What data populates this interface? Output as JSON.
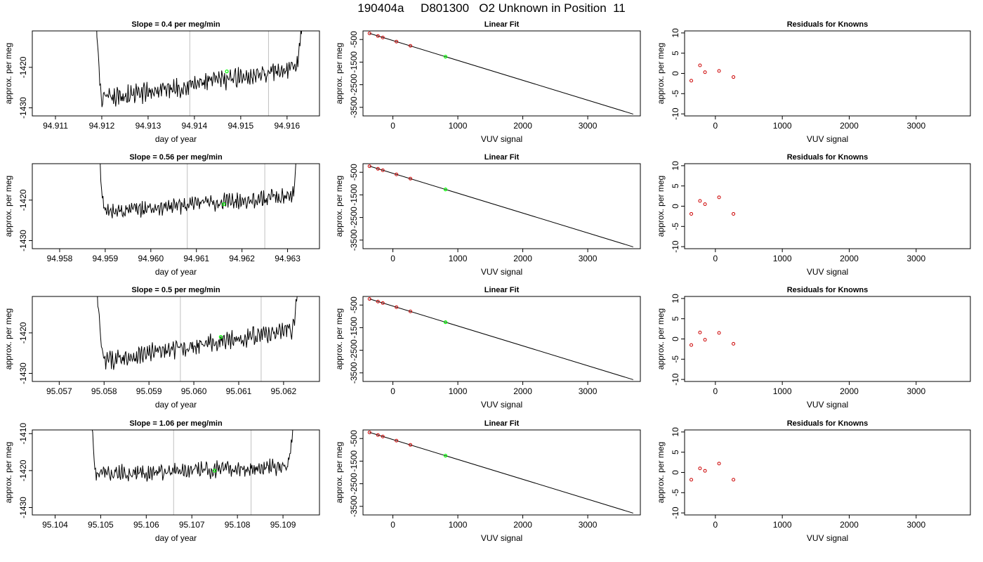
{
  "figure_title": "190404a     D801300   O2 Unknown in Position  11",
  "colors": {
    "trace": "#000000",
    "fit_line": "#000000",
    "cutoff_line": "#c0c0c0",
    "unknown_point": "#00ff00",
    "known_point": "#cc0000"
  },
  "chart_data": [
    {
      "type": "line",
      "panel": "trace",
      "row": 1,
      "title": "Slope =  0.4  per meg/min",
      "xlabel": "day of year",
      "ylabel": "approx. per meg",
      "xlim": [
        94.9105,
        94.9167
      ],
      "ylim": [
        -1432,
        -1411
      ],
      "xticks": [
        "94.911",
        "94.912",
        "94.913",
        "94.914",
        "94.915",
        "94.916"
      ],
      "yticks": [
        "-1430",
        "-1420"
      ],
      "trace_window": [
        94.9118,
        94.9165
      ],
      "plateau": {
        "x_start": 94.912,
        "x_end": 94.9162,
        "start": -1428,
        "end": -1420,
        "noise": 1.8
      },
      "vlines": [
        94.9139,
        94.9156
      ],
      "unknown": {
        "x": 94.9147,
        "y": -1421
      }
    },
    {
      "type": "scatter",
      "panel": "fit",
      "row": 1,
      "title": "Linear Fit",
      "xlabel": "VUV signal",
      "ylabel": "approx. per meg",
      "xlim": [
        -460,
        3810
      ],
      "ylim": [
        -3880,
        -120
      ],
      "xticks": [
        "0",
        "1000",
        "2000",
        "3000"
      ],
      "yticks": [
        "-500",
        "-1500",
        "-2500",
        "-3500"
      ],
      "line": [
        [
          -360,
          -230
        ],
        [
          3700,
          -3800
        ]
      ],
      "knowns": [
        [
          -360,
          -229
        ],
        [
          -230,
          -346
        ],
        [
          -155,
          -411
        ],
        [
          55,
          -595
        ],
        [
          270,
          -780
        ]
      ],
      "unknown": [
        810,
        -1259
      ]
    },
    {
      "type": "scatter",
      "panel": "residuals",
      "row": 1,
      "title": "Residuals for Knowns",
      "xlabel": "VUV signal",
      "ylabel": "approx. per meg",
      "xlim": [
        -460,
        3810
      ],
      "ylim": [
        -10.5,
        10.5
      ],
      "xticks": [
        "0",
        "1000",
        "2000",
        "3000"
      ],
      "yticks": [
        "-10",
        "-5",
        "0",
        "5",
        "10"
      ],
      "points": [
        [
          -360,
          -1.8
        ],
        [
          -230,
          2.0
        ],
        [
          -155,
          0.3
        ],
        [
          55,
          0.6
        ],
        [
          270,
          -0.9
        ]
      ]
    },
    {
      "type": "line",
      "panel": "trace",
      "row": 2,
      "title": "Slope =  0.56  per meg/min",
      "xlabel": "day of year",
      "ylabel": "approx. per meg",
      "xlim": [
        94.9574,
        94.9637
      ],
      "ylim": [
        -1432,
        -1411
      ],
      "xticks": [
        "94.958",
        "94.959",
        "94.960",
        "94.961",
        "94.962",
        "94.963"
      ],
      "yticks": [
        "-1430",
        "-1420"
      ],
      "trace_window": [
        94.9587,
        94.9634
      ],
      "plateau": {
        "x_start": 94.959,
        "x_end": 94.9631,
        "start": -1423,
        "end": -1419,
        "noise": 1.5
      },
      "vlines": [
        94.9608,
        94.9625
      ],
      "unknown": {
        "x": 94.9616,
        "y": -1421
      }
    },
    {
      "type": "scatter",
      "panel": "fit",
      "row": 2,
      "title": "Linear Fit",
      "xlabel": "VUV signal",
      "ylabel": "approx. per meg",
      "xlim": [
        -460,
        3810
      ],
      "ylim": [
        -3880,
        -120
      ],
      "xticks": [
        "0",
        "1000",
        "2000",
        "3000"
      ],
      "yticks": [
        "-500",
        "-1500",
        "-2500",
        "-3500"
      ],
      "line": [
        [
          -360,
          -230
        ],
        [
          3700,
          -3800
        ]
      ],
      "knowns": [
        [
          -360,
          -231
        ],
        [
          -230,
          -347
        ],
        [
          -155,
          -411
        ],
        [
          55,
          -593
        ],
        [
          270,
          -782
        ]
      ],
      "unknown": [
        810,
        -1259
      ]
    },
    {
      "type": "scatter",
      "panel": "residuals",
      "row": 2,
      "title": "Residuals for Knowns",
      "xlabel": "VUV signal",
      "ylabel": "approx. per meg",
      "xlim": [
        -460,
        3810
      ],
      "ylim": [
        -10.5,
        10.5
      ],
      "xticks": [
        "0",
        "1000",
        "2000",
        "3000"
      ],
      "yticks": [
        "-10",
        "-5",
        "0",
        "5",
        "10"
      ],
      "points": [
        [
          -360,
          -1.9
        ],
        [
          -230,
          1.3
        ],
        [
          -155,
          0.5
        ],
        [
          55,
          2.2
        ],
        [
          270,
          -1.9
        ]
      ]
    },
    {
      "type": "line",
      "panel": "trace",
      "row": 3,
      "title": "Slope =  0.5  per meg/min",
      "xlabel": "day of year",
      "ylabel": "approx. per meg",
      "xlim": [
        95.0564,
        95.0628
      ],
      "ylim": [
        -1432,
        -1411
      ],
      "xticks": [
        "95.057",
        "95.058",
        "95.059",
        "95.060",
        "95.061",
        "95.062"
      ],
      "yticks": [
        "-1430",
        "-1420"
      ],
      "trace_window": [
        95.0577,
        95.0625
      ],
      "plateau": {
        "x_start": 95.058,
        "x_end": 95.0622,
        "start": -1427,
        "end": -1419,
        "noise": 1.7
      },
      "vlines": [
        95.0597,
        95.0615
      ],
      "unknown": {
        "x": 95.0606,
        "y": -1421
      }
    },
    {
      "type": "scatter",
      "panel": "fit",
      "row": 3,
      "title": "Linear Fit",
      "xlabel": "VUV signal",
      "ylabel": "approx. per meg",
      "xlim": [
        -460,
        3810
      ],
      "ylim": [
        -3880,
        -120
      ],
      "xticks": [
        "0",
        "1000",
        "2000",
        "3000"
      ],
      "yticks": [
        "-500",
        "-1500",
        "-2500",
        "-3500"
      ],
      "line": [
        [
          -360,
          -230
        ],
        [
          3700,
          -3800
        ]
      ],
      "knowns": [
        [
          -360,
          -230
        ],
        [
          -230,
          -345
        ],
        [
          -155,
          -412
        ],
        [
          55,
          -594
        ],
        [
          270,
          -781
        ]
      ],
      "unknown": [
        810,
        -1259
      ]
    },
    {
      "type": "scatter",
      "panel": "residuals",
      "row": 3,
      "title": "Residuals for Knowns",
      "xlabel": "VUV signal",
      "ylabel": "approx. per meg",
      "xlim": [
        -460,
        3810
      ],
      "ylim": [
        -10.5,
        10.5
      ],
      "xticks": [
        "0",
        "1000",
        "2000",
        "3000"
      ],
      "yticks": [
        "-10",
        "-5",
        "0",
        "5",
        "10"
      ],
      "points": [
        [
          -360,
          -1.5
        ],
        [
          -230,
          1.6
        ],
        [
          -155,
          -0.2
        ],
        [
          55,
          1.5
        ],
        [
          270,
          -1.2
        ]
      ]
    },
    {
      "type": "line",
      "panel": "trace",
      "row": 4,
      "title": "Slope =  1.06  per meg/min",
      "xlabel": "day of year",
      "ylabel": "approx. per meg",
      "xlim": [
        95.1035,
        95.1098
      ],
      "ylim": [
        -1432,
        -1409
      ],
      "xticks": [
        "95.104",
        "95.105",
        "95.106",
        "95.107",
        "95.108",
        "95.109"
      ],
      "yticks": [
        "-1430",
        "-1420",
        "-1410"
      ],
      "trace_window": [
        95.1047,
        95.1094
      ],
      "plateau": {
        "x_start": 95.1049,
        "x_end": 95.1091,
        "start": -1421,
        "end": -1419,
        "noise": 1.6
      },
      "vlines": [
        95.1066,
        95.1083
      ],
      "unknown": {
        "x": 95.1075,
        "y": -1420
      }
    },
    {
      "type": "scatter",
      "panel": "fit",
      "row": 4,
      "title": "Linear Fit",
      "xlabel": "VUV signal",
      "ylabel": "approx. per meg",
      "xlim": [
        -460,
        3810
      ],
      "ylim": [
        -3880,
        -120
      ],
      "xticks": [
        "0",
        "1000",
        "2000",
        "3000"
      ],
      "yticks": [
        "-500",
        "-1500",
        "-2500",
        "-3500"
      ],
      "line": [
        [
          -360,
          -230
        ],
        [
          3700,
          -3800
        ]
      ],
      "knowns": [
        [
          -360,
          -231
        ],
        [
          -230,
          -345
        ],
        [
          -155,
          -411
        ],
        [
          55,
          -593
        ],
        [
          270,
          -782
        ]
      ],
      "unknown": [
        810,
        -1259
      ]
    },
    {
      "type": "scatter",
      "panel": "residuals",
      "row": 4,
      "title": "Residuals for Knowns",
      "xlabel": "VUV signal",
      "ylabel": "approx. per meg",
      "xlim": [
        -460,
        3810
      ],
      "ylim": [
        -10.5,
        10.5
      ],
      "xticks": [
        "0",
        "1000",
        "2000",
        "3000"
      ],
      "yticks": [
        "-10",
        "-5",
        "0",
        "5",
        "10"
      ],
      "points": [
        [
          -360,
          -1.8
        ],
        [
          -230,
          1.0
        ],
        [
          -155,
          0.4
        ],
        [
          55,
          2.2
        ],
        [
          270,
          -1.8
        ]
      ]
    }
  ]
}
